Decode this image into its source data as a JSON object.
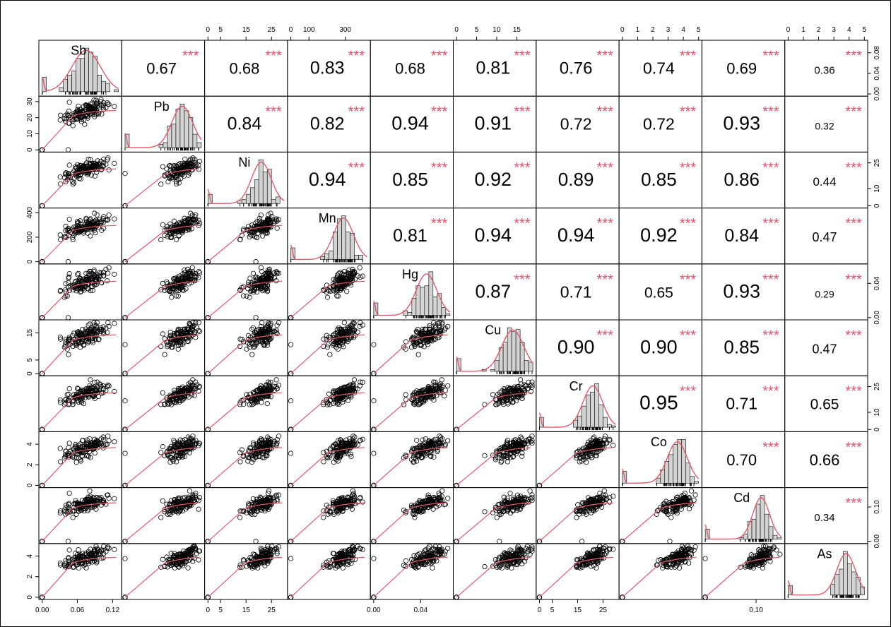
{
  "chart_data": {
    "type": "scatter-matrix",
    "variables": [
      "Sb",
      "Pb",
      "Ni",
      "Mn",
      "Hg",
      "Cu",
      "Cr",
      "Co",
      "Cd",
      "As"
    ],
    "significance_marker": "***",
    "colors": {
      "fit_line": "#e05a6a",
      "stars": "#df536b",
      "hist_fill": "#d3d3d3",
      "axis": "#000000"
    },
    "correlations": [
      {
        "row": "Sb",
        "col": "Pb",
        "r": "0.67",
        "stars": "***"
      },
      {
        "row": "Sb",
        "col": "Ni",
        "r": "0.68",
        "stars": "***"
      },
      {
        "row": "Sb",
        "col": "Mn",
        "r": "0.83",
        "stars": "***"
      },
      {
        "row": "Sb",
        "col": "Hg",
        "r": "0.68",
        "stars": "***"
      },
      {
        "row": "Sb",
        "col": "Cu",
        "r": "0.81",
        "stars": "***"
      },
      {
        "row": "Sb",
        "col": "Cr",
        "r": "0.76",
        "stars": "***"
      },
      {
        "row": "Sb",
        "col": "Co",
        "r": "0.74",
        "stars": "***"
      },
      {
        "row": "Sb",
        "col": "Cd",
        "r": "0.69",
        "stars": "***"
      },
      {
        "row": "Sb",
        "col": "As",
        "r": "0.36",
        "stars": "***"
      },
      {
        "row": "Pb",
        "col": "Ni",
        "r": "0.84",
        "stars": "***"
      },
      {
        "row": "Pb",
        "col": "Mn",
        "r": "0.82",
        "stars": "***"
      },
      {
        "row": "Pb",
        "col": "Hg",
        "r": "0.94",
        "stars": "***"
      },
      {
        "row": "Pb",
        "col": "Cu",
        "r": "0.91",
        "stars": "***"
      },
      {
        "row": "Pb",
        "col": "Cr",
        "r": "0.72",
        "stars": "***"
      },
      {
        "row": "Pb",
        "col": "Co",
        "r": "0.72",
        "stars": "***"
      },
      {
        "row": "Pb",
        "col": "Cd",
        "r": "0.93",
        "stars": "***"
      },
      {
        "row": "Pb",
        "col": "As",
        "r": "0.32",
        "stars": "***"
      },
      {
        "row": "Ni",
        "col": "Mn",
        "r": "0.94",
        "stars": "***"
      },
      {
        "row": "Ni",
        "col": "Hg",
        "r": "0.85",
        "stars": "***"
      },
      {
        "row": "Ni",
        "col": "Cu",
        "r": "0.92",
        "stars": "***"
      },
      {
        "row": "Ni",
        "col": "Cr",
        "r": "0.89",
        "stars": "***"
      },
      {
        "row": "Ni",
        "col": "Co",
        "r": "0.85",
        "stars": "***"
      },
      {
        "row": "Ni",
        "col": "Cd",
        "r": "0.86",
        "stars": "***"
      },
      {
        "row": "Ni",
        "col": "As",
        "r": "0.44",
        "stars": "***"
      },
      {
        "row": "Mn",
        "col": "Hg",
        "r": "0.81",
        "stars": "***"
      },
      {
        "row": "Mn",
        "col": "Cu",
        "r": "0.94",
        "stars": "***"
      },
      {
        "row": "Mn",
        "col": "Cr",
        "r": "0.94",
        "stars": "***"
      },
      {
        "row": "Mn",
        "col": "Co",
        "r": "0.92",
        "stars": "***"
      },
      {
        "row": "Mn",
        "col": "Cd",
        "r": "0.84",
        "stars": "***"
      },
      {
        "row": "Mn",
        "col": "As",
        "r": "0.47",
        "stars": "***"
      },
      {
        "row": "Hg",
        "col": "Cu",
        "r": "0.87",
        "stars": "***"
      },
      {
        "row": "Hg",
        "col": "Cr",
        "r": "0.71",
        "stars": "***"
      },
      {
        "row": "Hg",
        "col": "Co",
        "r": "0.65",
        "stars": "***"
      },
      {
        "row": "Hg",
        "col": "Cd",
        "r": "0.93",
        "stars": "***"
      },
      {
        "row": "Hg",
        "col": "As",
        "r": "0.29",
        "stars": "***"
      },
      {
        "row": "Cu",
        "col": "Cr",
        "r": "0.90",
        "stars": "***"
      },
      {
        "row": "Cu",
        "col": "Co",
        "r": "0.90",
        "stars": "***"
      },
      {
        "row": "Cu",
        "col": "Cd",
        "r": "0.85",
        "stars": "***"
      },
      {
        "row": "Cu",
        "col": "As",
        "r": "0.47",
        "stars": "***"
      },
      {
        "row": "Cr",
        "col": "Co",
        "r": "0.95",
        "stars": "***"
      },
      {
        "row": "Cr",
        "col": "Cd",
        "r": "0.71",
        "stars": "***"
      },
      {
        "row": "Cr",
        "col": "As",
        "r": "0.65",
        "stars": "***"
      },
      {
        "row": "Co",
        "col": "Cd",
        "r": "0.70",
        "stars": "***"
      },
      {
        "row": "Co",
        "col": "As",
        "r": "0.66",
        "stars": "***"
      },
      {
        "row": "Cd",
        "col": "As",
        "r": "0.34",
        "stars": "***"
      }
    ],
    "axes": {
      "Sb": {
        "range": [
          0,
          0.13
        ],
        "ticks": [
          0.0,
          0.06,
          0.12
        ],
        "tick_labels": [
          "0.00",
          "0.06",
          "0.12"
        ],
        "side": "bottom"
      },
      "Pb": {
        "range": [
          0,
          32
        ],
        "ticks": [
          0,
          10,
          20,
          30
        ],
        "tick_labels": [
          "0",
          "10",
          "20",
          "30"
        ],
        "side": "left"
      },
      "Ni": {
        "range": [
          0,
          30
        ],
        "ticks": [
          0,
          5,
          15,
          25
        ],
        "tick_labels": [
          "0",
          "5",
          "15",
          "25"
        ],
        "side": "bottom",
        "top_ticks": [
          0,
          5,
          15,
          25
        ],
        "top_tick_labels": [
          "0",
          "5",
          "15",
          "25"
        ]
      },
      "Mn": {
        "range": [
          0,
          420
        ],
        "ticks": [
          0,
          200,
          400
        ],
        "tick_labels": [
          "0",
          "200",
          "400"
        ],
        "side": "left",
        "top_ticks": [
          0,
          100,
          300
        ],
        "top_tick_labels": [
          "0",
          "100",
          "300"
        ]
      },
      "Hg": {
        "range": [
          0,
          0.065
        ],
        "ticks": [
          0.0,
          0.04
        ],
        "tick_labels": [
          "0.00",
          "0.04"
        ],
        "side": "bottom"
      },
      "Cu": {
        "range": [
          0,
          19
        ],
        "ticks": [
          0,
          5,
          15
        ],
        "tick_labels": [
          "0",
          "5",
          "15"
        ],
        "side": "left",
        "top_ticks": [
          0,
          5,
          10,
          15
        ],
        "top_tick_labels": [
          "0",
          "5",
          "10",
          "15"
        ]
      },
      "Cr": {
        "range": [
          0,
          30
        ],
        "ticks": [
          0,
          5,
          15,
          25
        ],
        "tick_labels": [
          "0",
          "5",
          "15",
          "25"
        ],
        "side": "bottom"
      },
      "Co": {
        "range": [
          0,
          5
        ],
        "ticks": [
          0,
          2,
          4
        ],
        "tick_labels": [
          "0",
          "2",
          "4"
        ],
        "side": "left",
        "top_ticks": [
          0,
          1,
          2,
          3,
          4,
          5
        ],
        "top_tick_labels": [
          "0",
          "1",
          "2",
          "3",
          "4",
          "5"
        ]
      },
      "Cd": {
        "range": [
          0,
          0.15
        ],
        "ticks": [
          0.1
        ],
        "tick_labels": [
          "0.10"
        ],
        "side": "bottom"
      },
      "As": {
        "range": [
          0,
          5
        ],
        "ticks": [
          0,
          2,
          4
        ],
        "tick_labels": [
          "0",
          "2",
          "4"
        ],
        "side": "left",
        "top_ticks": [
          0,
          1,
          2,
          3,
          4,
          5
        ],
        "top_tick_labels": [
          "0",
          "1",
          "2",
          "3",
          "4",
          "5"
        ]
      }
    },
    "right_axes": [
      {
        "row": "Sb",
        "ticks": [
          0.0,
          0.04,
          0.08
        ],
        "tick_labels": [
          "0.00",
          "0.04",
          "0.08"
        ],
        "range": [
          0,
          0.1
        ]
      },
      {
        "row": "Ni",
        "ticks": [
          0,
          10,
          25
        ],
        "tick_labels": [
          "0",
          "10",
          "25"
        ],
        "range": [
          0,
          30
        ]
      },
      {
        "row": "Hg",
        "ticks": [
          0.0,
          0.04
        ],
        "tick_labels": [
          "0.00",
          "0.04"
        ],
        "range": [
          0,
          0.06
        ]
      },
      {
        "row": "Cr",
        "ticks": [
          0,
          10,
          25
        ],
        "tick_labels": [
          "0",
          "10",
          "25"
        ],
        "range": [
          0,
          30
        ]
      },
      {
        "row": "Cd",
        "ticks": [
          0.0,
          0.1
        ],
        "tick_labels": [
          "0.00",
          "0.10"
        ],
        "range": [
          0,
          0.15
        ]
      }
    ],
    "distributions": {
      "Sb": {
        "mean": 0.075,
        "sd": 0.022,
        "zero_fraction": 0.05
      },
      "Pb": {
        "mean": 24,
        "sd": 4,
        "zero_fraction": 0.06
      },
      "Ni": {
        "mean": 21,
        "sd": 3.5,
        "zero_fraction": 0.05
      },
      "Mn": {
        "mean": 290,
        "sd": 50,
        "zero_fraction": 0.06
      },
      "Hg": {
        "mean": 0.045,
        "sd": 0.008,
        "zero_fraction": 0.06
      },
      "Cu": {
        "mean": 14,
        "sd": 2.5,
        "zero_fraction": 0.05
      },
      "Cr": {
        "mean": 21,
        "sd": 3.5,
        "zero_fraction": 0.05
      },
      "Co": {
        "mean": 3.6,
        "sd": 0.6,
        "zero_fraction": 0.05
      },
      "Cd": {
        "mean": 0.11,
        "sd": 0.015,
        "zero_fraction": 0.06
      },
      "As": {
        "mean": 3.8,
        "sd": 0.55,
        "zero_fraction": 0.05
      }
    },
    "grid": false,
    "legend": "none"
  }
}
